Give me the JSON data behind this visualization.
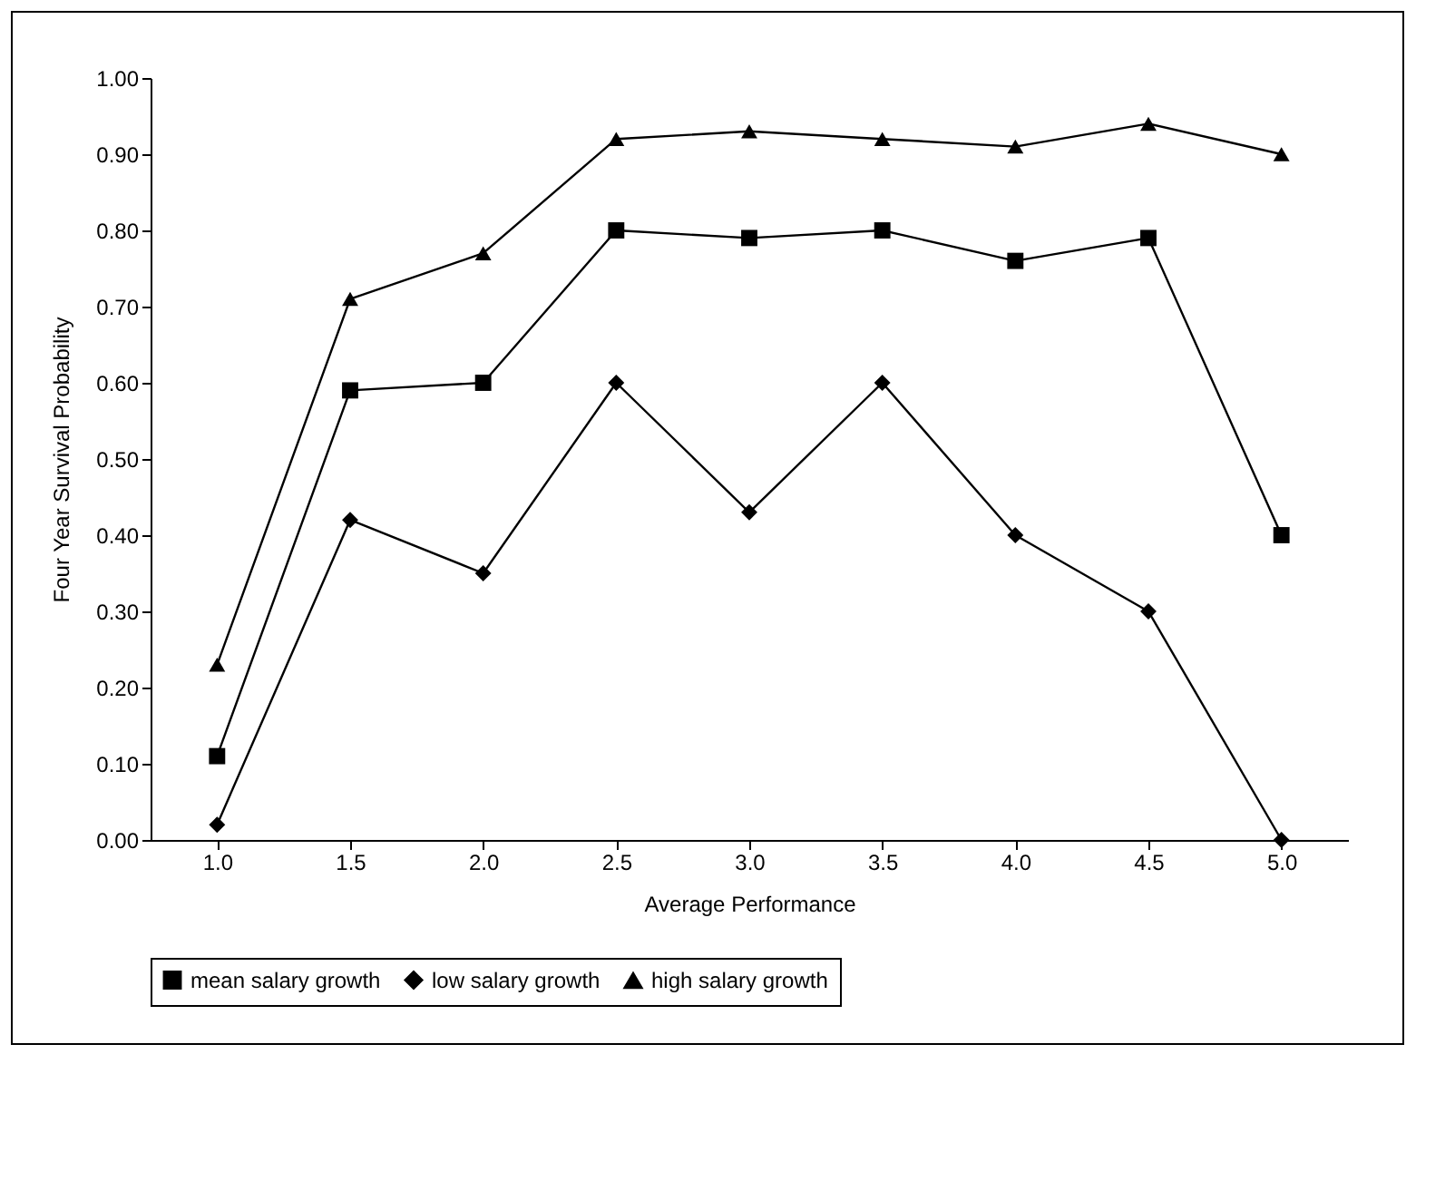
{
  "chart_data": {
    "type": "line",
    "xlabel": "Average Performance",
    "ylabel": "Four Year Survival Probability",
    "categories": [
      "1.0",
      "1.5",
      "2.0",
      "2.5",
      "3.0",
      "3.5",
      "4.0",
      "4.5",
      "5.0"
    ],
    "series": [
      {
        "name": "mean salary growth",
        "color": "#000000",
        "marker": "square",
        "values": [
          0.11,
          0.59,
          0.6,
          0.8,
          0.79,
          0.8,
          0.76,
          0.79,
          0.4
        ]
      },
      {
        "name": "low salary growth",
        "color": "#000000",
        "marker": "diamond",
        "values": [
          0.02,
          0.42,
          0.35,
          0.6,
          0.43,
          0.6,
          0.4,
          0.3,
          0.0
        ]
      },
      {
        "name": "high salary growth",
        "color": "#000000",
        "marker": "triangle",
        "values": [
          0.23,
          0.71,
          0.77,
          0.92,
          0.93,
          0.92,
          0.91,
          0.94,
          0.9
        ]
      }
    ],
    "ylim": [
      0,
      1
    ],
    "yticks": [
      {
        "value": 0,
        "label": "0.00"
      },
      {
        "value": 0.1,
        "label": "0.10"
      },
      {
        "value": 0.2,
        "label": "0.20"
      },
      {
        "value": 0.3,
        "label": "0.30"
      },
      {
        "value": 0.4,
        "label": "0.40"
      },
      {
        "value": 0.5,
        "label": "0.50"
      },
      {
        "value": 0.6,
        "label": "0.60"
      },
      {
        "value": 0.7,
        "label": "0.70"
      },
      {
        "value": 0.8,
        "label": "0.80"
      },
      {
        "value": 0.9,
        "label": "0.90"
      },
      {
        "value": 1,
        "label": "1.00"
      }
    ],
    "grid": false,
    "legend": "bottom",
    "line_style": "solid"
  }
}
